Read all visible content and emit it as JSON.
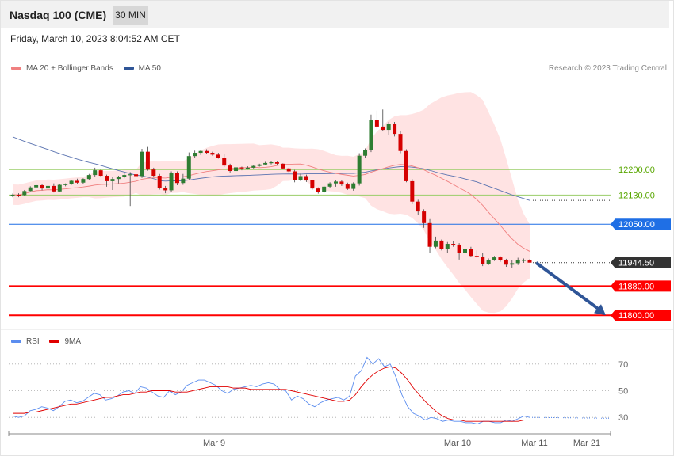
{
  "header": {
    "title": "Nasdaq 100 (CME)",
    "timeframe": "30 MIN"
  },
  "datetime": "Friday, March 10, 2023 8:04:52 AM CET",
  "legend": {
    "items": [
      {
        "label": "MA 20 + Bollinger Bands",
        "color": "#f08080"
      },
      {
        "label": "MA 50",
        "color": "#2f5597"
      }
    ],
    "credit": "Research © 2023 Trading Central"
  },
  "rsi_legend": {
    "items": [
      {
        "label": "RSI",
        "color": "#5b8def"
      },
      {
        "label": "9MA",
        "color": "#e00000"
      }
    ]
  },
  "chart_data": [
    {
      "type": "candlestick",
      "title": "Nasdaq 100 (CME)",
      "interval": "30 MIN",
      "ylim": [
        11770,
        12470
      ],
      "x_labels": [
        "Mar 9",
        "Mar 10",
        "Mar 11",
        "Mar 21"
      ],
      "levels": [
        {
          "label": "12200.00",
          "value": 12200.0,
          "color": "#9acd68",
          "kind": "resistance"
        },
        {
          "label": "12130.00",
          "value": 12130.0,
          "color": "#9acd68",
          "kind": "resistance"
        },
        {
          "label": "12050.00",
          "value": 12050.0,
          "color": "#1f6fe5",
          "kind": "pivot"
        },
        {
          "label": "11944.50",
          "value": 11944.5,
          "color": "#333333",
          "kind": "last-price"
        },
        {
          "label": "11880.00",
          "value": 11880.0,
          "color": "#ff0000",
          "kind": "support"
        },
        {
          "label": "11800.00",
          "value": 11800.0,
          "color": "#ff0000",
          "kind": "support"
        }
      ],
      "candles": [
        [
          12131,
          12134,
          12124,
          12131
        ],
        [
          12131,
          12135,
          12124,
          12130
        ],
        [
          12130,
          12144,
          12128,
          12141
        ],
        [
          12141,
          12154,
          12140,
          12151
        ],
        [
          12151,
          12161,
          12148,
          12157
        ],
        [
          12157,
          12159,
          12143,
          12148
        ],
        [
          12148,
          12163,
          12146,
          12155
        ],
        [
          12155,
          12162,
          12137,
          12140
        ],
        [
          12140,
          12161,
          12138,
          12158
        ],
        [
          12158,
          12162,
          12154,
          12160
        ],
        [
          12160,
          12172,
          12158,
          12169
        ],
        [
          12169,
          12175,
          12159,
          12164
        ],
        [
          12164,
          12176,
          12161,
          12174
        ],
        [
          12174,
          12188,
          12172,
          12185
        ],
        [
          12185,
          12205,
          12181,
          12198
        ],
        [
          12198,
          12202,
          12181,
          12183
        ],
        [
          12183,
          12186,
          12153,
          12168
        ],
        [
          12168,
          12180,
          12144,
          12174
        ],
        [
          12174,
          12183,
          12162,
          12180
        ],
        [
          12180,
          12191,
          12176,
          12185
        ],
        [
          12185,
          12193,
          12100,
          12187
        ],
        [
          12187,
          12198,
          12176,
          12182
        ],
        [
          12182,
          12257,
          12177,
          12249
        ],
        [
          12249,
          12262,
          12197,
          12200
        ],
        [
          12200,
          12205,
          12180,
          12183
        ],
        [
          12183,
          12188,
          12145,
          12150
        ],
        [
          12150,
          12155,
          12135,
          12143
        ],
        [
          12143,
          12195,
          12139,
          12190
        ],
        [
          12190,
          12195,
          12157,
          12163
        ],
        [
          12163,
          12188,
          12158,
          12175
        ],
        [
          12175,
          12247,
          12170,
          12237
        ],
        [
          12237,
          12252,
          12232,
          12246
        ],
        [
          12246,
          12253,
          12240,
          12251
        ],
        [
          12251,
          12256,
          12243,
          12246
        ],
        [
          12246,
          12249,
          12238,
          12241
        ],
        [
          12241,
          12246,
          12230,
          12233
        ],
        [
          12233,
          12243,
          12207,
          12211
        ],
        [
          12211,
          12216,
          12192,
          12196
        ],
        [
          12196,
          12209,
          12194,
          12206
        ],
        [
          12206,
          12208,
          12198,
          12203
        ],
        [
          12203,
          12209,
          12200,
          12205
        ],
        [
          12205,
          12213,
          12203,
          12210
        ],
        [
          12210,
          12216,
          12208,
          12214
        ],
        [
          12214,
          12221,
          12212,
          12218
        ],
        [
          12218,
          12223,
          12214,
          12220
        ],
        [
          12220,
          12222,
          12213,
          12216
        ],
        [
          12216,
          12217,
          12201,
          12203
        ],
        [
          12203,
          12205,
          12193,
          12195
        ],
        [
          12195,
          12199,
          12165,
          12172
        ],
        [
          12172,
          12189,
          12168,
          12182
        ],
        [
          12182,
          12186,
          12166,
          12170
        ],
        [
          12170,
          12172,
          12145,
          12148
        ],
        [
          12148,
          12151,
          12134,
          12138
        ],
        [
          12138,
          12156,
          12136,
          12153
        ],
        [
          12153,
          12165,
          12150,
          12162
        ],
        [
          12162,
          12171,
          12153,
          12167
        ],
        [
          12167,
          12171,
          12155,
          12159
        ],
        [
          12159,
          12164,
          12144,
          12147
        ],
        [
          12147,
          12165,
          12142,
          12162
        ],
        [
          12162,
          12245,
          12156,
          12238
        ],
        [
          12238,
          12258,
          12232,
          12253
        ],
        [
          12253,
          12351,
          12248,
          12336
        ],
        [
          12336,
          12362,
          12310,
          12318
        ],
        [
          12318,
          12365,
          12307,
          12309
        ],
        [
          12309,
          12331,
          12295,
          12326
        ],
        [
          12326,
          12331,
          12291,
          12298
        ],
        [
          12298,
          12307,
          12245,
          12251
        ],
        [
          12251,
          12256,
          12165,
          12168
        ],
        [
          12168,
          12174,
          12105,
          12112
        ],
        [
          12112,
          12117,
          12075,
          12085
        ],
        [
          12085,
          12091,
          12040,
          12053
        ],
        [
          12053,
          12064,
          11972,
          11988
        ],
        [
          11988,
          12016,
          11984,
          12005
        ],
        [
          12005,
          12008,
          11978,
          11983
        ],
        [
          11983,
          12001,
          11972,
          11996
        ],
        [
          11996,
          12003,
          11988,
          11994
        ],
        [
          11994,
          11998,
          11953,
          11970
        ],
        [
          11970,
          11988,
          11962,
          11983
        ],
        [
          11983,
          11988,
          11959,
          11963
        ],
        [
          11963,
          11978,
          11958,
          11960
        ],
        [
          11960,
          11970,
          11935,
          11940
        ],
        [
          11940,
          11956,
          11938,
          11952
        ],
        [
          11952,
          11963,
          11949,
          11959
        ],
        [
          11959,
          11962,
          11947,
          11951
        ],
        [
          11951,
          11955,
          11933,
          11939
        ],
        [
          11939,
          11951,
          11931,
          11943
        ],
        [
          11943,
          11958,
          11938,
          11951
        ],
        [
          11951,
          11956,
          11944,
          11952
        ],
        [
          11952,
          11954,
          11945,
          11944.5
        ]
      ],
      "forecast_arrow": {
        "from": 11944.5,
        "to": 11800.0
      }
    },
    {
      "type": "line",
      "title": "RSI",
      "ylim": [
        20,
        80
      ],
      "y_ticks": [
        70,
        50,
        30
      ],
      "series": [
        {
          "name": "RSI",
          "values": [
            31,
            30,
            31,
            35,
            36,
            38,
            37,
            35,
            38,
            42,
            43,
            41,
            42,
            45,
            48,
            47,
            43,
            44,
            46,
            49,
            50,
            48,
            53,
            52,
            49,
            46,
            45,
            50,
            47,
            49,
            54,
            56,
            58,
            58,
            56,
            54,
            50,
            48,
            51,
            52,
            53,
            54,
            53,
            55,
            56,
            55,
            51,
            50,
            43,
            46,
            44,
            40,
            38,
            41,
            43,
            44,
            45,
            43,
            46,
            61,
            65,
            75,
            70,
            74,
            68,
            70,
            60,
            47,
            38,
            33,
            31,
            28,
            30,
            29,
            27,
            28,
            27,
            27,
            26,
            26,
            25,
            27,
            27,
            26,
            26,
            28,
            27,
            29,
            31,
            30
          ]
        },
        {
          "name": "9MA",
          "values": [
            33,
            33,
            33,
            34,
            34,
            35,
            36,
            37,
            38,
            39,
            40,
            40,
            41,
            42,
            43,
            44,
            45,
            45,
            46,
            47,
            47,
            48,
            49,
            49,
            50,
            50,
            50,
            50,
            49,
            49,
            49,
            50,
            51,
            52,
            53,
            53,
            53,
            53,
            52,
            52,
            52,
            51,
            51,
            51,
            51,
            51,
            51,
            51,
            50,
            49,
            48,
            47,
            46,
            45,
            44,
            43,
            42,
            42,
            43,
            47,
            53,
            58,
            62,
            65,
            67,
            68,
            67,
            63,
            58,
            52,
            47,
            42,
            38,
            34,
            31,
            29,
            28,
            28,
            27,
            27,
            27,
            27,
            27,
            27,
            27,
            27,
            27,
            27,
            28,
            28
          ]
        }
      ]
    }
  ]
}
